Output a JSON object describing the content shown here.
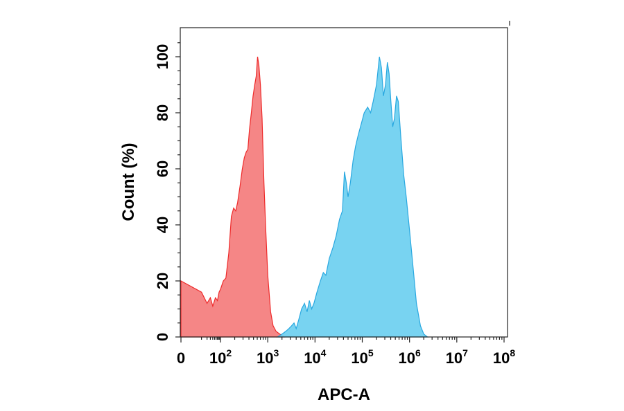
{
  "chart_data": {
    "type": "area",
    "title": "",
    "xlabel": "APC-A",
    "ylabel": "Count (%)",
    "x_scale": "biexponential (linear near 0, log10 above)",
    "xlim": [
      0,
      100000000
    ],
    "ylim": [
      0,
      110
    ],
    "grid": false,
    "legend": "none",
    "x_ticks": [
      {
        "value": 0,
        "base": "0",
        "exp": ""
      },
      {
        "value": 100,
        "base": "10",
        "exp": "2"
      },
      {
        "value": 1000,
        "base": "10",
        "exp": "3"
      },
      {
        "value": 10000,
        "base": "10",
        "exp": "4"
      },
      {
        "value": 100000,
        "base": "10",
        "exp": "5"
      },
      {
        "value": 1000000,
        "base": "10",
        "exp": "6"
      },
      {
        "value": 10000000,
        "base": "10",
        "exp": "7"
      },
      {
        "value": 100000000,
        "base": "10",
        "exp": "8"
      }
    ],
    "y_ticks": [
      0,
      20,
      40,
      60,
      80,
      100
    ],
    "series": [
      {
        "fill": "#f47c7c",
        "stroke": "#ee2a2a",
        "points": [
          [
            0,
            20
          ],
          [
            10,
            16
          ],
          [
            20,
            12
          ],
          [
            30,
            14
          ],
          [
            40,
            11
          ],
          [
            55,
            14
          ],
          [
            70,
            13
          ],
          [
            85,
            16
          ],
          [
            100,
            17
          ],
          [
            115,
            20
          ],
          [
            130,
            21
          ],
          [
            150,
            30
          ],
          [
            170,
            43
          ],
          [
            190,
            46
          ],
          [
            210,
            45
          ],
          [
            230,
            48
          ],
          [
            260,
            54
          ],
          [
            290,
            60
          ],
          [
            320,
            64
          ],
          [
            350,
            66
          ],
          [
            380,
            67
          ],
          [
            410,
            74
          ],
          [
            450,
            80
          ],
          [
            490,
            86
          ],
          [
            530,
            90
          ],
          [
            570,
            93
          ],
          [
            610,
            100
          ],
          [
            650,
            97
          ],
          [
            700,
            90
          ],
          [
            760,
            78
          ],
          [
            830,
            55
          ],
          [
            900,
            40
          ],
          [
            1000,
            22
          ],
          [
            1150,
            9
          ],
          [
            1300,
            4
          ],
          [
            1500,
            2
          ],
          [
            1800,
            1
          ],
          [
            2200,
            0
          ]
        ]
      },
      {
        "fill": "#6ccff0",
        "stroke": "#29a8e0",
        "points": [
          [
            1600,
            0
          ],
          [
            2000,
            1
          ],
          [
            2400,
            2
          ],
          [
            2800,
            3
          ],
          [
            3200,
            4
          ],
          [
            3600,
            5
          ],
          [
            4000,
            3
          ],
          [
            4500,
            6
          ],
          [
            5200,
            10
          ],
          [
            6000,
            12
          ],
          [
            6800,
            9
          ],
          [
            7600,
            13
          ],
          [
            8500,
            10
          ],
          [
            9500,
            12
          ],
          [
            11000,
            16
          ],
          [
            13000,
            20
          ],
          [
            15000,
            23
          ],
          [
            17000,
            22
          ],
          [
            20000,
            28
          ],
          [
            24000,
            32
          ],
          [
            28000,
            36
          ],
          [
            33000,
            42
          ],
          [
            38000,
            45
          ],
          [
            42000,
            59
          ],
          [
            46000,
            55
          ],
          [
            50000,
            50
          ],
          [
            56000,
            55
          ],
          [
            64000,
            63
          ],
          [
            72000,
            68
          ],
          [
            82000,
            72
          ],
          [
            95000,
            76
          ],
          [
            110000,
            80
          ],
          [
            130000,
            82
          ],
          [
            150000,
            80
          ],
          [
            170000,
            84
          ],
          [
            200000,
            90
          ],
          [
            230000,
            100
          ],
          [
            255000,
            96
          ],
          [
            280000,
            86
          ],
          [
            310000,
            90
          ],
          [
            340000,
            98
          ],
          [
            370000,
            94
          ],
          [
            400000,
            85
          ],
          [
            440000,
            75
          ],
          [
            480000,
            78
          ],
          [
            530000,
            86
          ],
          [
            580000,
            84
          ],
          [
            650000,
            72
          ],
          [
            750000,
            58
          ],
          [
            850000,
            50
          ],
          [
            1000000,
            38
          ],
          [
            1200000,
            24
          ],
          [
            1400000,
            12
          ],
          [
            1700000,
            4
          ],
          [
            2000000,
            1
          ],
          [
            2400000,
            0
          ]
        ]
      }
    ]
  }
}
